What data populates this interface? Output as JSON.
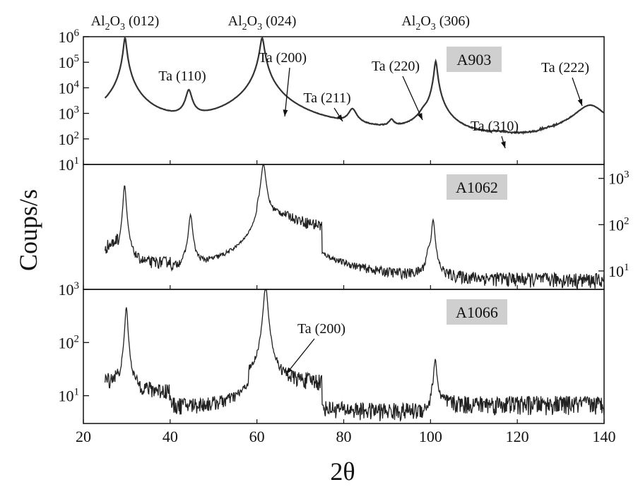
{
  "chart_data": {
    "type": "line",
    "xlabel": "2θ",
    "ylabel": "Coups/s",
    "x_axis": {
      "range": [
        20,
        140
      ],
      "ticks": [
        "20",
        "40",
        "60",
        "80",
        "100",
        "120",
        "140"
      ],
      "tick_values": [
        20,
        40,
        60,
        80,
        100,
        120,
        140
      ]
    },
    "panels": [
      {
        "id": "A903",
        "label": "A903",
        "y_scale": "log",
        "ylim": [
          10,
          1000000
        ],
        "y_axis_side": "left",
        "yticks": [
          {
            "base": "10",
            "exp": "6",
            "value": 1000000
          },
          {
            "base": "10",
            "exp": "5",
            "value": 100000
          },
          {
            "base": "10",
            "exp": "4",
            "value": 10000
          },
          {
            "base": "10",
            "exp": "3",
            "value": 1000
          },
          {
            "base": "10",
            "exp": "2",
            "value": 100
          },
          {
            "base": "10",
            "exp": "1",
            "value": 10
          }
        ],
        "baseline_segments": [
          [
            25,
            28,
            60
          ],
          [
            28,
            40,
            55
          ],
          [
            40,
            60,
            35
          ],
          [
            60,
            80,
            40
          ],
          [
            80,
            93,
            35
          ],
          [
            93,
            103,
            30
          ],
          [
            103,
            125,
            28
          ],
          [
            125,
            140,
            55
          ]
        ],
        "peaks": [
          [
            26.2,
            55,
            0.25
          ],
          [
            29.6,
            900000,
            0.3
          ],
          [
            44.3,
            7500,
            0.6
          ],
          [
            55,
            45,
            0.2
          ],
          [
            61.2,
            900000,
            0.4
          ],
          [
            60.8,
            900,
            1.2
          ],
          [
            64.8,
            200,
            0.7
          ],
          [
            82,
            1100,
            0.9
          ],
          [
            91,
            250,
            0.6
          ],
          [
            98.5,
            500,
            1.0
          ],
          [
            101.2,
            110000,
            0.3
          ],
          [
            116,
            25,
            2.0
          ],
          [
            136.8,
            2000,
            3.0
          ]
        ],
        "annotations": [
          {
            "text": "Ta (110)",
            "arrow_to": [
              44.3,
              7500
            ]
          },
          {
            "text": "Ta (200)",
            "arrow_to": [
              64.8,
              200
            ]
          },
          {
            "text": "Ta (211)",
            "arrow_to": [
              82,
              1100
            ]
          },
          {
            "text": "Ta (220)",
            "arrow_to": [
              98.5,
              500
            ]
          },
          {
            "text": "Ta (310)",
            "arrow_to": [
              116,
              25
            ]
          },
          {
            "text": "Ta (222)",
            "arrow_to": [
              136.8,
              2000
            ]
          }
        ]
      },
      {
        "id": "A1062",
        "label": "A1062",
        "y_scale": "log",
        "ylim": [
          4,
          2000
        ],
        "y_axis_side": "right",
        "yticks": [
          {
            "base": "10",
            "exp": "3",
            "value": 1000
          },
          {
            "base": "10",
            "exp": "2",
            "value": 100
          },
          {
            "base": "10",
            "exp": "1",
            "value": 10
          }
        ],
        "baseline_segments": [
          [
            25,
            28,
            30
          ],
          [
            28,
            40,
            11
          ],
          [
            40,
            60,
            7
          ],
          [
            60,
            75,
            80
          ],
          [
            75,
            100,
            6
          ],
          [
            100,
            140,
            6
          ]
        ],
        "peaks": [
          [
            29.5,
            700,
            0.3
          ],
          [
            44.7,
            150,
            0.4
          ],
          [
            61.5,
            2000,
            0.45
          ],
          [
            65,
            80,
            5.0
          ],
          [
            99.5,
            15,
            0.4
          ],
          [
            100.6,
            120,
            0.35
          ]
        ],
        "annotations": []
      },
      {
        "id": "A1066",
        "label": "A1066",
        "y_scale": "log",
        "ylim": [
          3,
          1000
        ],
        "y_axis_side": "left",
        "yticks": [
          {
            "base": "10",
            "exp": "3",
            "value": 1000
          },
          {
            "base": "10",
            "exp": "2",
            "value": 100
          },
          {
            "base": "10",
            "exp": "1",
            "value": 10
          }
        ],
        "baseline_segments": [
          [
            25,
            28,
            18
          ],
          [
            28,
            40,
            12
          ],
          [
            40,
            58,
            6
          ],
          [
            58,
            75,
            18
          ],
          [
            75,
            100,
            5
          ],
          [
            100,
            140,
            7
          ]
        ],
        "peaks": [
          [
            29.9,
            450,
            0.3
          ],
          [
            62,
            1200,
            0.4
          ],
          [
            101.1,
            40,
            0.35
          ]
        ],
        "annotations": [
          {
            "text": "Ta (200)",
            "arrow_to": [
              65.5,
              22
            ]
          }
        ]
      }
    ],
    "top_labels": [
      {
        "text_main": "Al",
        "sub1": "2",
        "text_mid": "O",
        "sub2": "3",
        "text_end": " (012)",
        "x": 29.6
      },
      {
        "text_main": "Al",
        "sub1": "2",
        "text_mid": "O",
        "sub2": "3",
        "text_end": " (024)",
        "x": 61.2
      },
      {
        "text_main": "Al",
        "sub1": "2",
        "text_mid": "O",
        "sub2": "3",
        "text_end": " (306)",
        "x": 101.2
      }
    ]
  }
}
